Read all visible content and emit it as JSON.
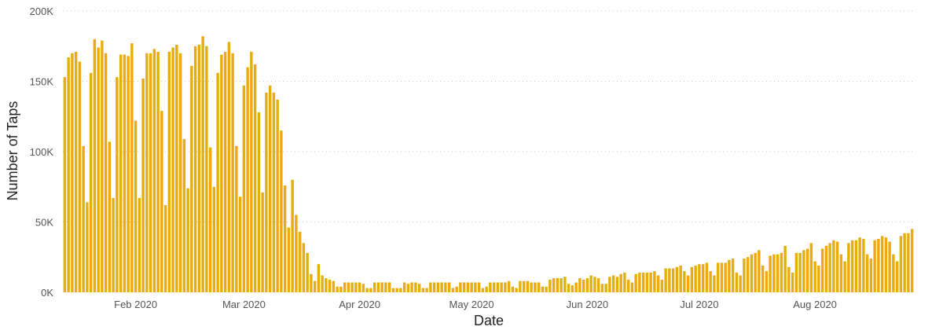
{
  "chart_data": {
    "type": "bar",
    "title": "",
    "xlabel": "Date",
    "ylabel": "Number of Taps",
    "x_start": "2020-01-13",
    "x_end": "2020-08-22",
    "x_ticks": [
      {
        "date": "2020-02-01",
        "label": "Feb 2020"
      },
      {
        "date": "2020-03-01",
        "label": "Mar 2020"
      },
      {
        "date": "2020-04-01",
        "label": "Apr 2020"
      },
      {
        "date": "2020-05-01",
        "label": "May 2020"
      },
      {
        "date": "2020-06-01",
        "label": "Jun 2020"
      },
      {
        "date": "2020-07-01",
        "label": "Jul 2020"
      },
      {
        "date": "2020-08-01",
        "label": "Aug 2020"
      }
    ],
    "y_ticks": [
      {
        "value": 0,
        "label": "0K"
      },
      {
        "value": 50000,
        "label": "50K"
      },
      {
        "value": 100000,
        "label": "100K"
      },
      {
        "value": 150000,
        "label": "150K"
      },
      {
        "value": 200000,
        "label": "200K"
      }
    ],
    "ylim": [
      0,
      200000
    ],
    "grid": true,
    "bar_color": "#E8AD0C",
    "values": [
      153000,
      167000,
      170000,
      171000,
      164000,
      104000,
      64000,
      156000,
      180000,
      174000,
      179000,
      170000,
      107000,
      67000,
      153000,
      169000,
      169000,
      168000,
      177000,
      122000,
      67000,
      152000,
      170000,
      170000,
      173000,
      171000,
      129000,
      62000,
      171000,
      174000,
      176000,
      170000,
      109000,
      74000,
      161000,
      175000,
      176000,
      182000,
      175000,
      103000,
      75000,
      156000,
      169000,
      171000,
      178000,
      170000,
      104000,
      68000,
      147000,
      160000,
      171000,
      162000,
      128000,
      71000,
      142000,
      147000,
      142000,
      137000,
      115000,
      76000,
      46000,
      80000,
      55000,
      43000,
      35000,
      28000,
      13000,
      8000,
      20000,
      12000,
      10000,
      9000,
      8000,
      4000,
      4000,
      7000,
      7000,
      7000,
      7000,
      7000,
      6000,
      3000,
      3000,
      7000,
      7000,
      7000,
      7000,
      7000,
      3000,
      3000,
      3000,
      7000,
      6000,
      7000,
      7000,
      6000,
      3000,
      3000,
      7000,
      7000,
      7000,
      7000,
      7000,
      7000,
      3000,
      4000,
      7000,
      7000,
      7000,
      7000,
      7000,
      7000,
      3000,
      4000,
      7000,
      7000,
      7000,
      7000,
      7000,
      8000,
      4000,
      3000,
      8000,
      8000,
      8000,
      7000,
      7000,
      7000,
      4000,
      4000,
      9000,
      10000,
      10000,
      10000,
      11000,
      6000,
      5000,
      7000,
      10000,
      9000,
      10000,
      12000,
      11000,
      10000,
      6000,
      6000,
      11000,
      12000,
      11000,
      13000,
      14000,
      9000,
      7000,
      13000,
      14000,
      14000,
      14000,
      14000,
      15000,
      12000,
      9000,
      17000,
      17000,
      17000,
      18000,
      19000,
      15000,
      12000,
      18000,
      19000,
      20000,
      20000,
      21000,
      15000,
      12000,
      21000,
      21000,
      21000,
      23000,
      24000,
      14000,
      12000,
      24000,
      25000,
      27000,
      28000,
      30000,
      19000,
      15000,
      26000,
      27000,
      27000,
      28000,
      33000,
      18000,
      14000,
      28000,
      28000,
      30000,
      31000,
      35000,
      22000,
      19000,
      31000,
      33000,
      35000,
      37000,
      36000,
      27000,
      22000,
      35000,
      37000,
      37000,
      39000,
      38000,
      27000,
      24000,
      37000,
      38000,
      40000,
      39000,
      36000,
      27000,
      22000,
      40000,
      42000,
      42000,
      45000
    ]
  }
}
